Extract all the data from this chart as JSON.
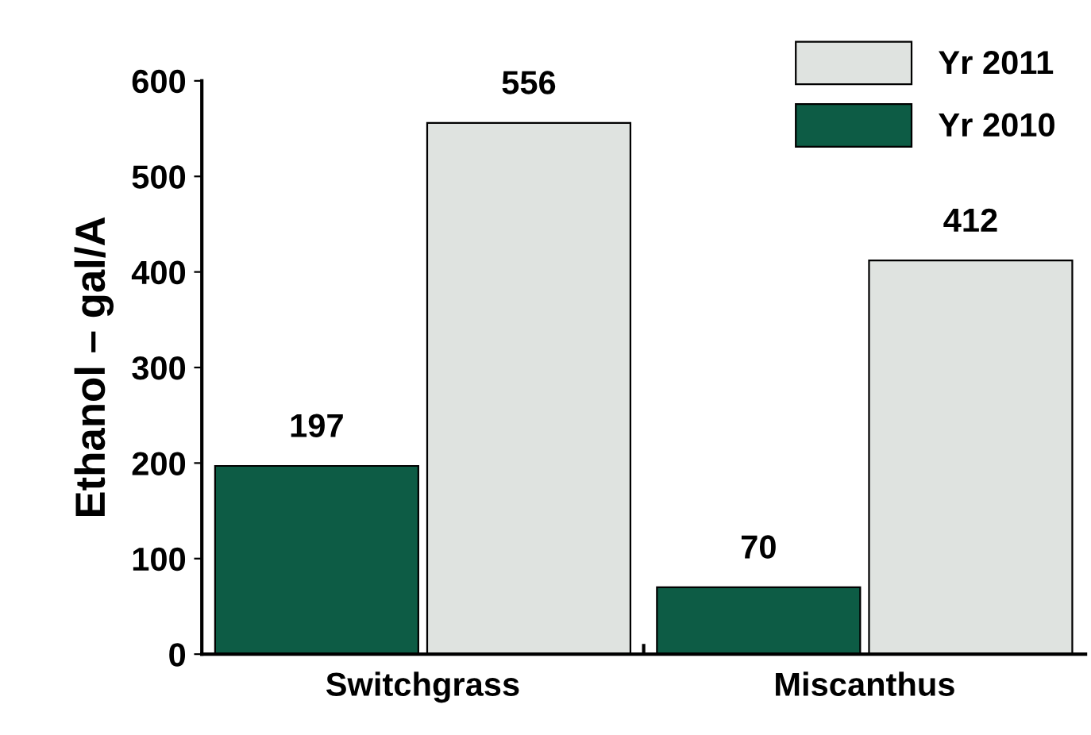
{
  "chart_data": {
    "type": "bar",
    "ylabel": "Ethanol – gal/A",
    "categories": [
      "Switchgrass",
      "Miscanthus"
    ],
    "series": [
      {
        "name": "Yr 2010",
        "color": "#0d5c45",
        "values": [
          197,
          70
        ]
      },
      {
        "name": "Yr 2011",
        "color": "#dfe3e0",
        "values": [
          556,
          412
        ]
      }
    ],
    "ylim": [
      0,
      600
    ],
    "yticks": [
      0,
      100,
      200,
      300,
      400,
      500,
      600
    ],
    "grid": false,
    "legend": "top right",
    "data_labels": true
  }
}
